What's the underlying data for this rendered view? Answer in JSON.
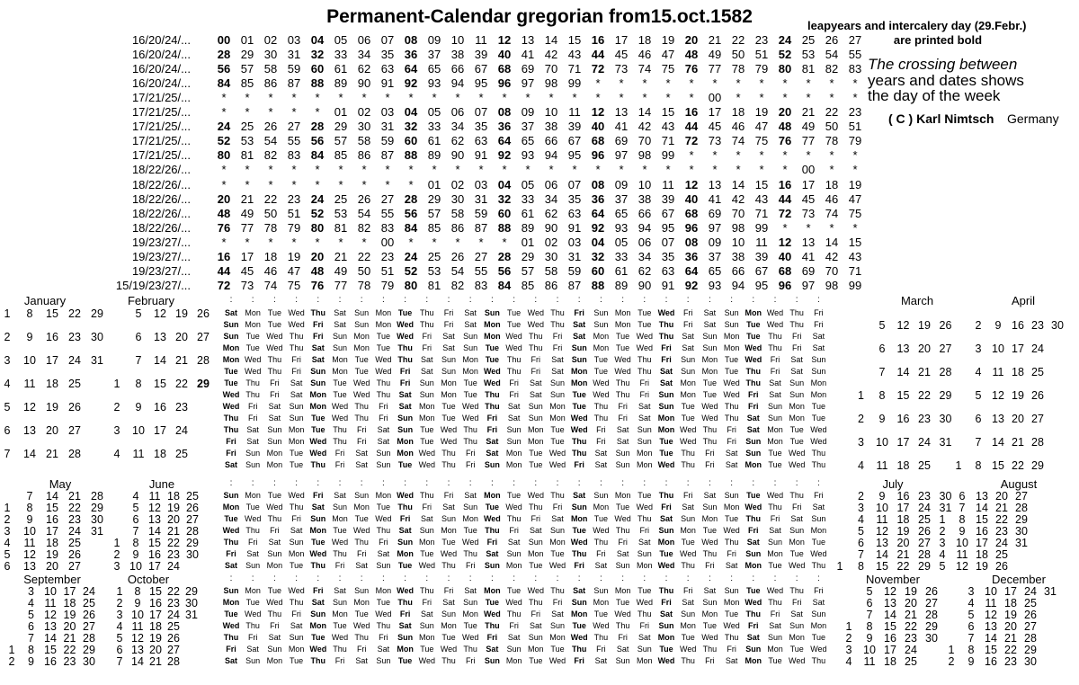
{
  "title": "Permanent-Calendar gregorian from15.oct.1582",
  "legend": {
    "line1": "leapyears and intercalery day (29.Febr.)",
    "line2": "are printed bold",
    "note1": "The crossing between",
    "note2": "years and dates shows",
    "note3": "the day of the week",
    "copyright": "( C ) Karl Nimtsch",
    "country": "Germany"
  },
  "asterisk": "*",
  "colon_char": ":",
  "weekday_bold_columns": [
    0,
    4,
    8,
    12,
    16,
    20,
    24
  ],
  "year_table": {
    "rows": [
      {
        "label": "16/20/24/...",
        "cells": "00 01 02 03 04 05 06 07 08 09 10 11 12 13 14 15 16 17 18 19 20 21 22 23 24 25 26 27",
        "bold": [
          0,
          4,
          8,
          12,
          16,
          20,
          24
        ]
      },
      {
        "label": "16/20/24/...",
        "cells": "28 29 30 31 32 33 34 35 36 37 38 39 40 41 42 43 44 45 46 47 48 49 50 51 52 53 54 55",
        "bold": [
          0,
          4,
          8,
          12,
          16,
          20,
          24
        ]
      },
      {
        "label": "16/20/24/...",
        "cells": "56 57 58 59 60 61 62 63 64 65 66 67 68 69 70 71 72 73 74 75 76 77 78 79 80 81 82 83",
        "bold": [
          0,
          4,
          8,
          12,
          16,
          20,
          24
        ]
      },
      {
        "label": "16/20/24/...",
        "cells": "84 85 86 87 88 89 90 91 92 93 94 95 96 97 98 99 * * * * * * * * * * * *",
        "bold": [
          0,
          4,
          8,
          12
        ]
      },
      {
        "label": "17/21/25/...",
        "cells": "* * * * * * * * * * * * * * * * * * * * * 00 * * * * * *",
        "bold": []
      },
      {
        "label": "17/21/25/...",
        "cells": "* * * * * 01 02 03 04 05 06 07 08 09 10 11 12 13 14 15 16 17 18 19 20 21 22 23",
        "bold": [
          8,
          12,
          16,
          20,
          24
        ]
      },
      {
        "label": "17/21/25/...",
        "cells": "24 25 26 27 28 29 30 31 32 33 34 35 36 37 38 39 40 41 42 43 44 45 46 47 48 49 50 51",
        "bold": [
          0,
          4,
          8,
          12,
          16,
          20,
          24
        ]
      },
      {
        "label": "17/21/25/...",
        "cells": "52 53 54 55 56 57 58 59 60 61 62 63 64 65 66 67 68 69 70 71 72 73 74 75 76 77 78 79",
        "bold": [
          0,
          4,
          8,
          12,
          16,
          20,
          24
        ]
      },
      {
        "label": "17/21/25/...",
        "cells": "80 81 82 83 84 85 86 87 88 89 90 91 92 93 94 95 96 97 98 99 * * * * * * * *",
        "bold": [
          0,
          4,
          8,
          12,
          16
        ]
      },
      {
        "label": "18/22/26/...",
        "cells": "* * * * * * * * * * * * * * * * * * * * * * * * * 00 * *",
        "bold": []
      },
      {
        "label": "18/22/26/...",
        "cells": "* * * * * * * * * 01 02 03 04 05 06 07 08 09 10 11 12 13 14 15 16 17 18 19",
        "bold": [
          12,
          16,
          20,
          24
        ]
      },
      {
        "label": "18/22/26/...",
        "cells": "20 21 22 23 24 25 26 27 28 29 30 31 32 33 34 35 36 37 38 39 40 41 42 43 44 45 46 47",
        "bold": [
          0,
          4,
          8,
          12,
          16,
          20,
          24
        ]
      },
      {
        "label": "18/22/26/...",
        "cells": "48 49 50 51 52 53 54 55 56 57 58 59 60 61 62 63 64 65 66 67 68 69 70 71 72 73 74 75",
        "bold": [
          0,
          4,
          8,
          12,
          16,
          20,
          24
        ]
      },
      {
        "label": "18/22/26/...",
        "cells": "76 77 78 79 80 81 82 83 84 85 86 87 88 89 90 91 92 93 94 95 96 97 98 99 * * * *",
        "bold": [
          0,
          4,
          8,
          12,
          16,
          20
        ]
      },
      {
        "label": "19/23/27/...",
        "cells": "* * * * * * * 00 * * * * * 01 02 03 04 05 06 07 08 09 10 11 12 13 14 15",
        "bold": [
          16,
          20,
          24
        ]
      },
      {
        "label": "19/23/27/...",
        "cells": "16 17 18 19 20 21 22 23 24 25 26 27 28 29 30 31 32 33 34 35 36 37 38 39 40 41 42 43",
        "bold": [
          0,
          4,
          8,
          12,
          16,
          20,
          24
        ]
      },
      {
        "label": "19/23/27/...",
        "cells": "44 45 46 47 48 49 50 51 52 53 54 55 56 57 58 59 60 61 62 63 64 65 66 67 68 69 70 71",
        "bold": [
          0,
          4,
          8,
          12,
          16,
          20,
          24
        ]
      },
      {
        "label": "15/19/23/27/...",
        "cells": "72 73 74 75 76 77 78 79 80 81 82 83 84 85 86 87 88 89 90 91 92 93 94 95 96 97 98 99",
        "bold": [
          0,
          4,
          8,
          12,
          16,
          20,
          24
        ]
      }
    ]
  },
  "day_patterns": {
    "A0": "Sat Mon Tue Wed Thu Sat Sun Mon Tue Thu Fri Sat Sun Tue Wed Thu Fri Sun Mon Tue Wed Fri Sat Sun Mon Wed Thu Fri",
    "A1": "Sun Tue Wed Thu Fri Sun Mon Tue Wed Fri Sat Sun Mon Wed Thu Fri Sat Mon Tue Wed Thu Sat Sun Mon Tue Thu Fri Sat",
    "A2": "Mon Wed Thu Fri Sat Mon Tue Wed Thu Sat Sun Mon Tue Thu Fri Sat Sun Tue Wed Thu Fri Sun Mon Tue Wed Fri Sat Sun",
    "A3": "Tue Thu Fri Sat Sun Tue Wed Thu Fri Sun Mon Tue Wed Fri Sat Sun Mon Wed Thu Fri Sat Mon Tue Wed Thu Sat Sun Mon",
    "A4": "Wed Fri Sat Sun Mon Wed Thu Fri Sat Mon Tue Wed Thu Sat Sun Mon Tue Thu Fri Sat Sun Tue Wed Thu Fri Sun Mon Tue",
    "A5": "Thu Sat Sun Mon Tue Thu Fri Sat Sun Tue Wed Thu Fri Sun Mon Tue Wed Fri Sat Sun Mon Wed Thu Fri Sat Mon Tue Wed",
    "A6": "Fri Sun Mon Tue Wed Fri Sat Sun Mon Wed Thu Fri Sat Mon Tue Wed Thu Sat Sun Mon Tue Thu Fri Sat Sun Tue Wed Thu",
    "B0": "Sun Mon Tue Wed Fri Sat Sun Mon Wed Thu Fri Sat Mon Tue Wed Thu Sat Sun Mon Tue Thu Fri Sat Sun Tue Wed Thu Fri",
    "B1": "Mon Tue Wed Thu Sat Sun Mon Tue Thu Fri Sat Sun Tue Wed Thu Fri Sun Mon Tue Wed Fri Sat Sun Mon Wed Thu Fri Sat",
    "B2": "Tue Wed Thu Fri Sun Mon Tue Wed Fri Sat Sun Mon Wed Thu Fri Sat Mon Tue Wed Thu Sat Sun Mon Tue Thu Fri Sat Sun",
    "B3": "Wed Thu Fri Sat Mon Tue Wed Thu Sat Sun Mon Tue Thu Fri Sat Sun Tue Wed Thu Fri Sun Mon Tue Wed Fri Sat Sun Mon",
    "B4": "Thu Fri Sat Sun Tue Wed Thu Fri Sun Mon Tue Wed Fri Sat Sun Mon Wed Thu Fri Sat Mon Tue Wed Thu Sat Sun Mon Tue",
    "B5": "Fri Sat Sun Mon Wed Thu Fri Sat Mon Tue Wed Thu Sat Sun Mon Tue Thu Fri Sat Sun Tue Wed Thu Fri Sun Mon Tue Wed",
    "B6": "Sat Sun Mon Tue Thu Fri Sat Sun Tue Wed Thu Fri Sun Mon Tue Wed Fri Sat Sun Mon Wed Thu Fri Sat Mon Tue Wed Thu"
  },
  "blocks": [
    {
      "rows": [
        "A0",
        "B0",
        "A1",
        "B1",
        "A2",
        "B2",
        "A3",
        "B3",
        "A4",
        "B4",
        "A5",
        "B5",
        "A6",
        "B6"
      ]
    },
    {
      "rows": [
        "B0",
        "B1",
        "B2",
        "B3",
        "B4",
        "B5",
        "B6"
      ]
    },
    {
      "rows": [
        "B0",
        "B1",
        "B2",
        "B3",
        "B4",
        "B5",
        "B6"
      ]
    }
  ],
  "months": [
    {
      "name": "January",
      "block": 0,
      "parity": 0,
      "rows": [
        [
          1,
          8,
          15,
          22,
          29
        ],
        [
          2,
          9,
          16,
          23,
          30
        ],
        [
          3,
          10,
          17,
          24,
          31
        ],
        [
          4,
          11,
          18,
          25
        ],
        [
          5,
          12,
          19,
          26
        ],
        [
          6,
          13,
          20,
          27
        ],
        [
          7,
          14,
          21,
          28
        ]
      ]
    },
    {
      "name": "February",
      "block": 0,
      "parity": 0,
      "bold_date": 29,
      "rows": [
        [
          5,
          12,
          19,
          26
        ],
        [
          6,
          13,
          20,
          27
        ],
        [
          7,
          14,
          21,
          28
        ],
        [
          1,
          8,
          15,
          22,
          29
        ],
        [
          2,
          9,
          16,
          23
        ],
        [
          3,
          10,
          17,
          24
        ],
        [
          4,
          11,
          18,
          25
        ]
      ]
    },
    {
      "name": "March",
      "block": 0,
      "parity": 1,
      "rows": [
        [
          5,
          12,
          19,
          26
        ],
        [
          6,
          13,
          20,
          27
        ],
        [
          7,
          14,
          21,
          28
        ],
        [
          1,
          8,
          15,
          22,
          29
        ],
        [
          2,
          9,
          16,
          23,
          30
        ],
        [
          3,
          10,
          17,
          24,
          31
        ],
        [
          4,
          11,
          18,
          25
        ]
      ]
    },
    {
      "name": "April",
      "block": 0,
      "parity": 1,
      "rows": [
        [
          2,
          9,
          16,
          23,
          30
        ],
        [
          3,
          10,
          17,
          24
        ],
        [
          4,
          11,
          18,
          25
        ],
        [
          5,
          12,
          19,
          26
        ],
        [
          6,
          13,
          20,
          27
        ],
        [
          7,
          14,
          21,
          28
        ],
        [
          1,
          8,
          15,
          22,
          29
        ]
      ]
    },
    {
      "name": "May",
      "block": 1,
      "parity": 0,
      "rows": [
        [
          7,
          14,
          21,
          28
        ],
        [
          1,
          8,
          15,
          22,
          29
        ],
        [
          2,
          9,
          16,
          23,
          30
        ],
        [
          3,
          10,
          17,
          24,
          31
        ],
        [
          4,
          11,
          18,
          25
        ],
        [
          5,
          12,
          19,
          26
        ],
        [
          6,
          13,
          20,
          27
        ]
      ]
    },
    {
      "name": "June",
      "block": 1,
      "parity": 0,
      "rows": [
        [
          4,
          11,
          18,
          25
        ],
        [
          5,
          12,
          19,
          26
        ],
        [
          6,
          13,
          20,
          27
        ],
        [
          7,
          14,
          21,
          28
        ],
        [
          1,
          8,
          15,
          22,
          29
        ],
        [
          2,
          9,
          16,
          23,
          30
        ],
        [
          3,
          10,
          17,
          24
        ]
      ]
    },
    {
      "name": "July",
      "block": 1,
      "parity": 1,
      "rows": [
        [
          2,
          9,
          16,
          23,
          30
        ],
        [
          3,
          10,
          17,
          24,
          31
        ],
        [
          4,
          11,
          18,
          25
        ],
        [
          5,
          12,
          19,
          26
        ],
        [
          6,
          13,
          20,
          27
        ],
        [
          7,
          14,
          21,
          28
        ],
        [
          1,
          8,
          15,
          22,
          29
        ]
      ]
    },
    {
      "name": "August",
      "block": 1,
      "parity": 1,
      "rows": [
        [
          6,
          13,
          20,
          27
        ],
        [
          7,
          14,
          21,
          28
        ],
        [
          1,
          8,
          15,
          22,
          29
        ],
        [
          2,
          9,
          16,
          23,
          30
        ],
        [
          3,
          10,
          17,
          24,
          31
        ],
        [
          4,
          11,
          18,
          25
        ],
        [
          5,
          12,
          19,
          26
        ]
      ]
    },
    {
      "name": "September",
      "block": 2,
      "parity": 0,
      "rows": [
        [
          3,
          10,
          17,
          24
        ],
        [
          4,
          11,
          18,
          25
        ],
        [
          5,
          12,
          19,
          26
        ],
        [
          6,
          13,
          20,
          27
        ],
        [
          7,
          14,
          21,
          28
        ],
        [
          1,
          8,
          15,
          22,
          29
        ],
        [
          2,
          9,
          16,
          23,
          30
        ]
      ]
    },
    {
      "name": "October",
      "block": 2,
      "parity": 0,
      "rows": [
        [
          1,
          8,
          15,
          22,
          29
        ],
        [
          2,
          9,
          16,
          23,
          30
        ],
        [
          3,
          10,
          17,
          24,
          31
        ],
        [
          4,
          11,
          18,
          25
        ],
        [
          5,
          12,
          19,
          26
        ],
        [
          6,
          13,
          20,
          27
        ],
        [
          7,
          14,
          21,
          28
        ]
      ]
    },
    {
      "name": "November",
      "block": 2,
      "parity": 1,
      "rows": [
        [
          5,
          12,
          19,
          26
        ],
        [
          6,
          13,
          20,
          27
        ],
        [
          7,
          14,
          21,
          28
        ],
        [
          1,
          8,
          15,
          22,
          29
        ],
        [
          2,
          9,
          16,
          23,
          30
        ],
        [
          3,
          10,
          17,
          24
        ],
        [
          4,
          11,
          18,
          25
        ]
      ]
    },
    {
      "name": "December",
      "block": 2,
      "parity": 1,
      "rows": [
        [
          3,
          10,
          17,
          24,
          31
        ],
        [
          4,
          11,
          18,
          25
        ],
        [
          5,
          12,
          19,
          26
        ],
        [
          6,
          13,
          20,
          27
        ],
        [
          7,
          14,
          21,
          28
        ],
        [
          1,
          8,
          15,
          22,
          29
        ],
        [
          2,
          9,
          16,
          23,
          30
        ]
      ]
    }
  ]
}
